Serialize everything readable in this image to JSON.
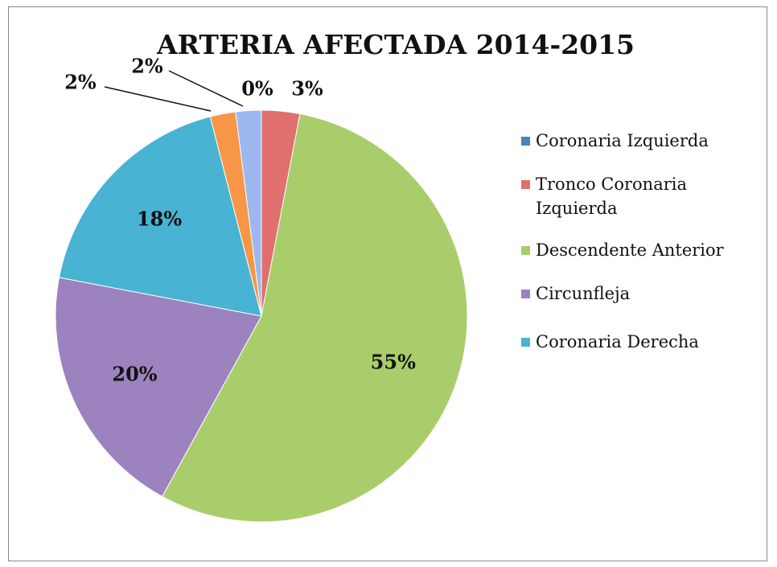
{
  "chart_data": {
    "type": "pie",
    "title": "ARTERIA AFECTADA 2014-2015",
    "categories": [
      "Coronaria Izquierda",
      "Tronco Coronaria Izquierda",
      "Descendente Anterior",
      "Circunfleja",
      "Coronaria Derecha",
      null,
      null
    ],
    "values": [
      0,
      3,
      55,
      20,
      18,
      2,
      2
    ],
    "value_labels": [
      "0%",
      "3%",
      "55%",
      "20%",
      "18%",
      "2%",
      "2%"
    ],
    "colors": [
      "#4f81bd",
      "#e0706d",
      "#a9cd6a",
      "#9c82bf",
      "#48b3d3",
      "#f79646",
      "#9cb8ee"
    ],
    "legend": "right"
  }
}
